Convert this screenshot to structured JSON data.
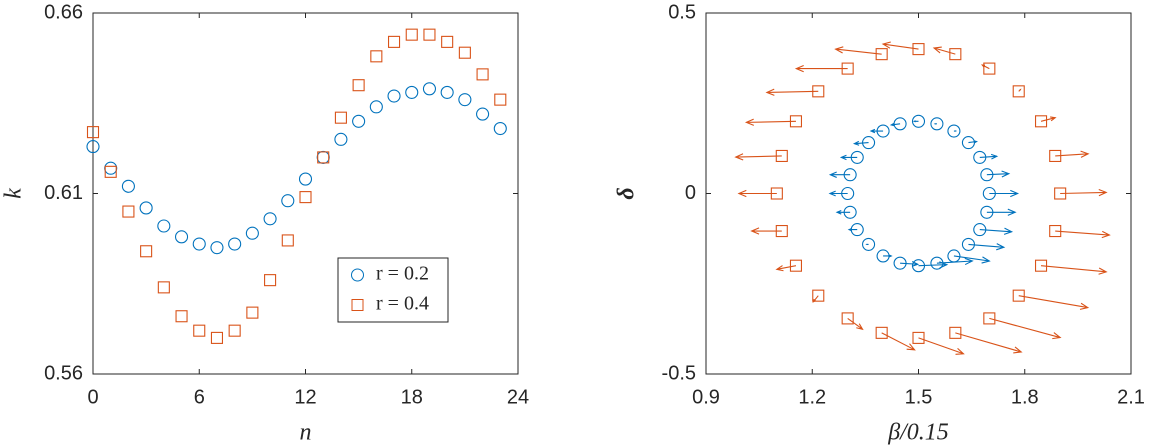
{
  "chart_data": [
    {
      "type": "scatter",
      "xlabel": "n",
      "ylabel": "k",
      "xlim": [
        0,
        24
      ],
      "xticks": [
        0,
        6,
        12,
        18,
        24
      ],
      "ylim": [
        0.56,
        0.66
      ],
      "yticks": [
        0.56,
        0.61,
        0.66
      ],
      "legend": "southeast",
      "x": [
        0,
        1,
        2,
        3,
        4,
        5,
        6,
        7,
        8,
        9,
        10,
        11,
        12,
        13,
        14,
        15,
        16,
        17,
        18,
        19,
        20,
        21,
        22,
        23
      ],
      "series": [
        {
          "name": "r = 0.2",
          "color": "#0072bd",
          "marker": "circle",
          "values": [
            0.623,
            0.617,
            0.612,
            0.606,
            0.601,
            0.598,
            0.596,
            0.595,
            0.596,
            0.599,
            0.603,
            0.608,
            0.614,
            0.62,
            0.625,
            0.63,
            0.634,
            0.637,
            0.638,
            0.639,
            0.638,
            0.636,
            0.632,
            0.628
          ]
        },
        {
          "name": "r = 0.4",
          "color": "#d95319",
          "marker": "square",
          "values": [
            0.627,
            0.616,
            0.605,
            0.594,
            0.584,
            0.576,
            0.572,
            0.57,
            0.572,
            0.577,
            0.586,
            0.597,
            0.609,
            0.62,
            0.631,
            0.64,
            0.648,
            0.652,
            0.654,
            0.654,
            0.652,
            0.649,
            0.643,
            0.636
          ]
        }
      ]
    },
    {
      "type": "quiver",
      "xlabel": "β/0.15",
      "ylabel": "δ",
      "xlim": [
        0.9,
        2.1
      ],
      "xticks": [
        0.9,
        1.2,
        1.5,
        1.8,
        2.1
      ],
      "ylim": [
        -0.5,
        0.5
      ],
      "yticks": [
        -0.5,
        0,
        0.5
      ],
      "series": [
        {
          "color": "#0072bd",
          "marker": "circle",
          "x": [
            1.7,
            1.693,
            1.673,
            1.641,
            1.6,
            1.552,
            1.5,
            1.448,
            1.4,
            1.359,
            1.327,
            1.307,
            1.3,
            1.307,
            1.327,
            1.359,
            1.4,
            1.448,
            1.5,
            1.552,
            1.6,
            1.641,
            1.673,
            1.693
          ],
          "y": [
            0,
            0.052,
            0.1,
            0.141,
            0.173,
            0.193,
            0.2,
            0.193,
            0.173,
            0.141,
            0.1,
            0.052,
            0,
            -0.052,
            -0.1,
            -0.141,
            -0.173,
            -0.193,
            -0.2,
            -0.193,
            -0.173,
            -0.141,
            -0.1,
            -0.052
          ],
          "u": [
            0.08,
            0.062,
            0.048,
            0.023,
            0.005,
            -0.005,
            -0.012,
            -0.025,
            -0.034,
            -0.04,
            -0.045,
            -0.056,
            -0.05,
            -0.037,
            -0.023,
            -0.005,
            0.023,
            0.05,
            0.08,
            0.1,
            0.1,
            0.1,
            0.09,
            0.08
          ],
          "v": [
            0,
            0.003,
            0.003,
            0.003,
            0,
            0,
            0,
            -0.003,
            0,
            -0.003,
            0,
            0,
            0,
            0,
            0,
            0,
            0,
            -0.003,
            0.003,
            0.006,
            -0.014,
            -0.008,
            -0.006,
            0
          ]
        },
        {
          "color": "#d95319",
          "marker": "square",
          "x": [
            1.9,
            1.886,
            1.846,
            1.783,
            1.7,
            1.604,
            1.5,
            1.396,
            1.3,
            1.217,
            1.154,
            1.114,
            1.1,
            1.114,
            1.154,
            1.217,
            1.3,
            1.396,
            1.5,
            1.604,
            1.7,
            1.783,
            1.846,
            1.886
          ],
          "y": [
            0,
            0.104,
            0.2,
            0.283,
            0.346,
            0.386,
            0.4,
            0.386,
            0.346,
            0.283,
            0.2,
            0.104,
            0,
            -0.104,
            -0.2,
            -0.283,
            -0.346,
            -0.386,
            -0.4,
            -0.386,
            -0.346,
            -0.283,
            -0.2,
            -0.104
          ],
          "u": [
            0.13,
            0.093,
            0.04,
            0.005,
            -0.02,
            -0.06,
            -0.1,
            -0.13,
            -0.145,
            -0.145,
            -0.14,
            -0.13,
            -0.107,
            -0.085,
            -0.054,
            -0.014,
            0.042,
            0.093,
            0.127,
            0.186,
            0.2,
            0.195,
            0.184,
            0.153
          ],
          "v": [
            0.003,
            0.006,
            0.01,
            0.005,
            0.01,
            0.017,
            0.014,
            0.014,
            0,
            -0.003,
            -0.003,
            -0.003,
            0,
            0,
            -0.01,
            -0.017,
            -0.03,
            -0.047,
            -0.044,
            -0.053,
            -0.053,
            -0.033,
            -0.017,
            -0.011
          ]
        }
      ]
    }
  ]
}
